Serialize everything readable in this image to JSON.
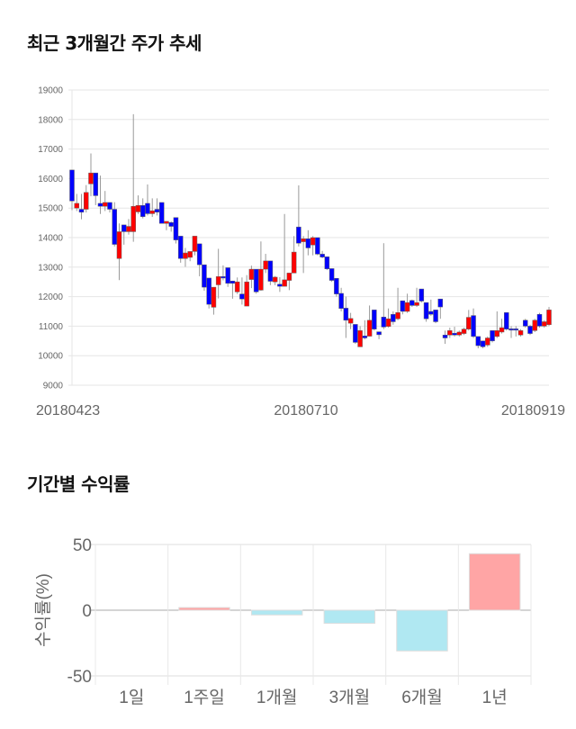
{
  "sections": {
    "price_title": "최근 3개월간 주가 추세",
    "return_title": "기간별 수익률"
  },
  "colors": {
    "up": "#ff0000",
    "down": "#0000ff",
    "positive_bar": "#ffa5a5",
    "negative_bar": "#b0e8f2",
    "grid": "#e6e6e6"
  },
  "chart_data": [
    {
      "type": "candlestick",
      "ylim": [
        9000,
        19000
      ],
      "yticks": [
        "19000",
        "18000",
        "17000",
        "16000",
        "15000",
        "14000",
        "13000",
        "12000",
        "11000",
        "10000",
        "9000"
      ],
      "xtick_labels": [
        "20180423",
        "20180710",
        "20180919"
      ],
      "grid": true,
      "candles_ohlc": [
        [
          16290,
          16290,
          14930,
          15240
        ],
        [
          15000,
          15480,
          14900,
          15160
        ],
        [
          14960,
          15480,
          14620,
          14860
        ],
        [
          14960,
          15780,
          14850,
          15530
        ],
        [
          15820,
          16850,
          15400,
          16190
        ],
        [
          16190,
          16190,
          15100,
          15420
        ],
        [
          15160,
          16100,
          14800,
          15060
        ],
        [
          15060,
          15580,
          14900,
          15190
        ],
        [
          15190,
          15190,
          14850,
          14960
        ],
        [
          14960,
          15200,
          13700,
          13770
        ],
        [
          13290,
          14480,
          12560,
          14200
        ],
        [
          14430,
          14430,
          13760,
          14200
        ],
        [
          14200,
          14630,
          14100,
          14380
        ],
        [
          14200,
          18180,
          13860,
          15060
        ],
        [
          14870,
          15430,
          14800,
          15090
        ],
        [
          15090,
          15330,
          14650,
          14710
        ],
        [
          15160,
          15800,
          14750,
          14810
        ],
        [
          14810,
          15330,
          14700,
          14910
        ],
        [
          14960,
          15330,
          14750,
          14860
        ],
        [
          15190,
          15190,
          14480,
          14480
        ],
        [
          14480,
          14550,
          14250,
          14550
        ],
        [
          14510,
          14550,
          14200,
          14380
        ],
        [
          14680,
          14680,
          13800,
          13920
        ],
        [
          14050,
          14050,
          13150,
          13290
        ],
        [
          13290,
          13650,
          13010,
          13480
        ],
        [
          13330,
          13530,
          13200,
          13530
        ],
        [
          13530,
          14050,
          13400,
          14050
        ],
        [
          13790,
          13790,
          12690,
          13080
        ],
        [
          13080,
          13080,
          12200,
          12320
        ],
        [
          12630,
          12630,
          11600,
          11740
        ],
        [
          11640,
          12320,
          11390,
          12320
        ],
        [
          12400,
          13620,
          11940,
          12680
        ],
        [
          12680,
          13060,
          12550,
          12630
        ],
        [
          12980,
          12980,
          12330,
          12450
        ],
        [
          12530,
          12530,
          11930,
          12450
        ],
        [
          12160,
          12650,
          12090,
          12500
        ],
        [
          12090,
          12650,
          11730,
          11920
        ],
        [
          11680,
          12730,
          11680,
          12500
        ],
        [
          12580,
          13050,
          12290,
          12930
        ],
        [
          12930,
          12930,
          12100,
          12160
        ],
        [
          12220,
          13870,
          12200,
          12930
        ],
        [
          12930,
          13450,
          12800,
          13210
        ],
        [
          13210,
          13210,
          12390,
          12520
        ],
        [
          12500,
          12700,
          12390,
          12660
        ],
        [
          12420,
          12660,
          12160,
          12350
        ],
        [
          12350,
          14800,
          12350,
          12570
        ],
        [
          12550,
          12800,
          12220,
          12800
        ],
        [
          12800,
          14050,
          12800,
          13510
        ],
        [
          14360,
          15770,
          13700,
          13810
        ],
        [
          13860,
          14050,
          12800,
          13960
        ],
        [
          13960,
          14250,
          13400,
          13650
        ],
        [
          13750,
          14050,
          13400,
          14000
        ],
        [
          14000,
          14000,
          13400,
          13440
        ],
        [
          13440,
          13550,
          13300,
          13340
        ],
        [
          13350,
          13350,
          12900,
          12940
        ],
        [
          12950,
          12950,
          12500,
          12550
        ],
        [
          12620,
          12620,
          12000,
          12090
        ],
        [
          12110,
          12300,
          11500,
          11600
        ],
        [
          11610,
          12000,
          10600,
          11200
        ],
        [
          11100,
          11450,
          10900,
          11260
        ],
        [
          11060,
          11060,
          10400,
          10450
        ],
        [
          10300,
          11000,
          10300,
          10850
        ],
        [
          10670,
          11200,
          10550,
          10600
        ],
        [
          10660,
          11700,
          10650,
          11200
        ],
        [
          11550,
          11550,
          10850,
          10900
        ],
        [
          10810,
          10810,
          10560,
          10710
        ],
        [
          11310,
          13810,
          10900,
          10970
        ],
        [
          10990,
          11600,
          10950,
          11250
        ],
        [
          11400,
          11500,
          11050,
          11150
        ],
        [
          11250,
          12300,
          11200,
          11460
        ],
        [
          11860,
          11860,
          11400,
          11500
        ],
        [
          11500,
          12100,
          11450,
          11800
        ],
        [
          11870,
          11900,
          11650,
          11700
        ],
        [
          11700,
          12300,
          11650,
          11800
        ],
        [
          12260,
          12260,
          11800,
          11850
        ],
        [
          11800,
          11800,
          11150,
          11250
        ],
        [
          11500,
          11900,
          11350,
          11400
        ],
        [
          11550,
          11550,
          11100,
          11150
        ],
        [
          11920,
          11920,
          11250,
          11650
        ],
        [
          10700,
          10850,
          10400,
          10600
        ],
        [
          10700,
          10950,
          10600,
          10850
        ],
        [
          10760,
          10980,
          10650,
          10700
        ],
        [
          10700,
          10850,
          10650,
          10800
        ],
        [
          10750,
          10950,
          10700,
          10900
        ],
        [
          10900,
          11550,
          10850,
          11300
        ],
        [
          11360,
          11600,
          10600,
          10650
        ],
        [
          10650,
          10650,
          10250,
          10340
        ],
        [
          10500,
          10500,
          10250,
          10300
        ],
        [
          10360,
          10650,
          10300,
          10600
        ],
        [
          10850,
          10850,
          10450,
          10500
        ],
        [
          10650,
          11500,
          10600,
          10850
        ],
        [
          10800,
          11250,
          10750,
          10950
        ],
        [
          11460,
          11460,
          10850,
          10900
        ],
        [
          10910,
          11000,
          10600,
          10900
        ],
        [
          10910,
          11000,
          10650,
          10900
        ],
        [
          10700,
          10900,
          10650,
          10850
        ],
        [
          11200,
          11250,
          10950,
          11000
        ],
        [
          11000,
          11050,
          10700,
          10750
        ],
        [
          10850,
          11250,
          10800,
          11200
        ],
        [
          11400,
          11450,
          10950,
          11000
        ],
        [
          11000,
          11200,
          10950,
          11150
        ],
        [
          11050,
          11650,
          11000,
          11550
        ]
      ]
    },
    {
      "type": "bar",
      "ylabel": "수익률(%)",
      "ylim": [
        -50,
        50
      ],
      "yticks": [
        "50",
        "0",
        "-50"
      ],
      "categories": [
        "1일",
        "1주일",
        "1개월",
        "3개월",
        "6개월",
        "1년"
      ],
      "values": [
        0,
        2,
        -3.6,
        -10,
        -31,
        43
      ],
      "grid": true
    }
  ]
}
